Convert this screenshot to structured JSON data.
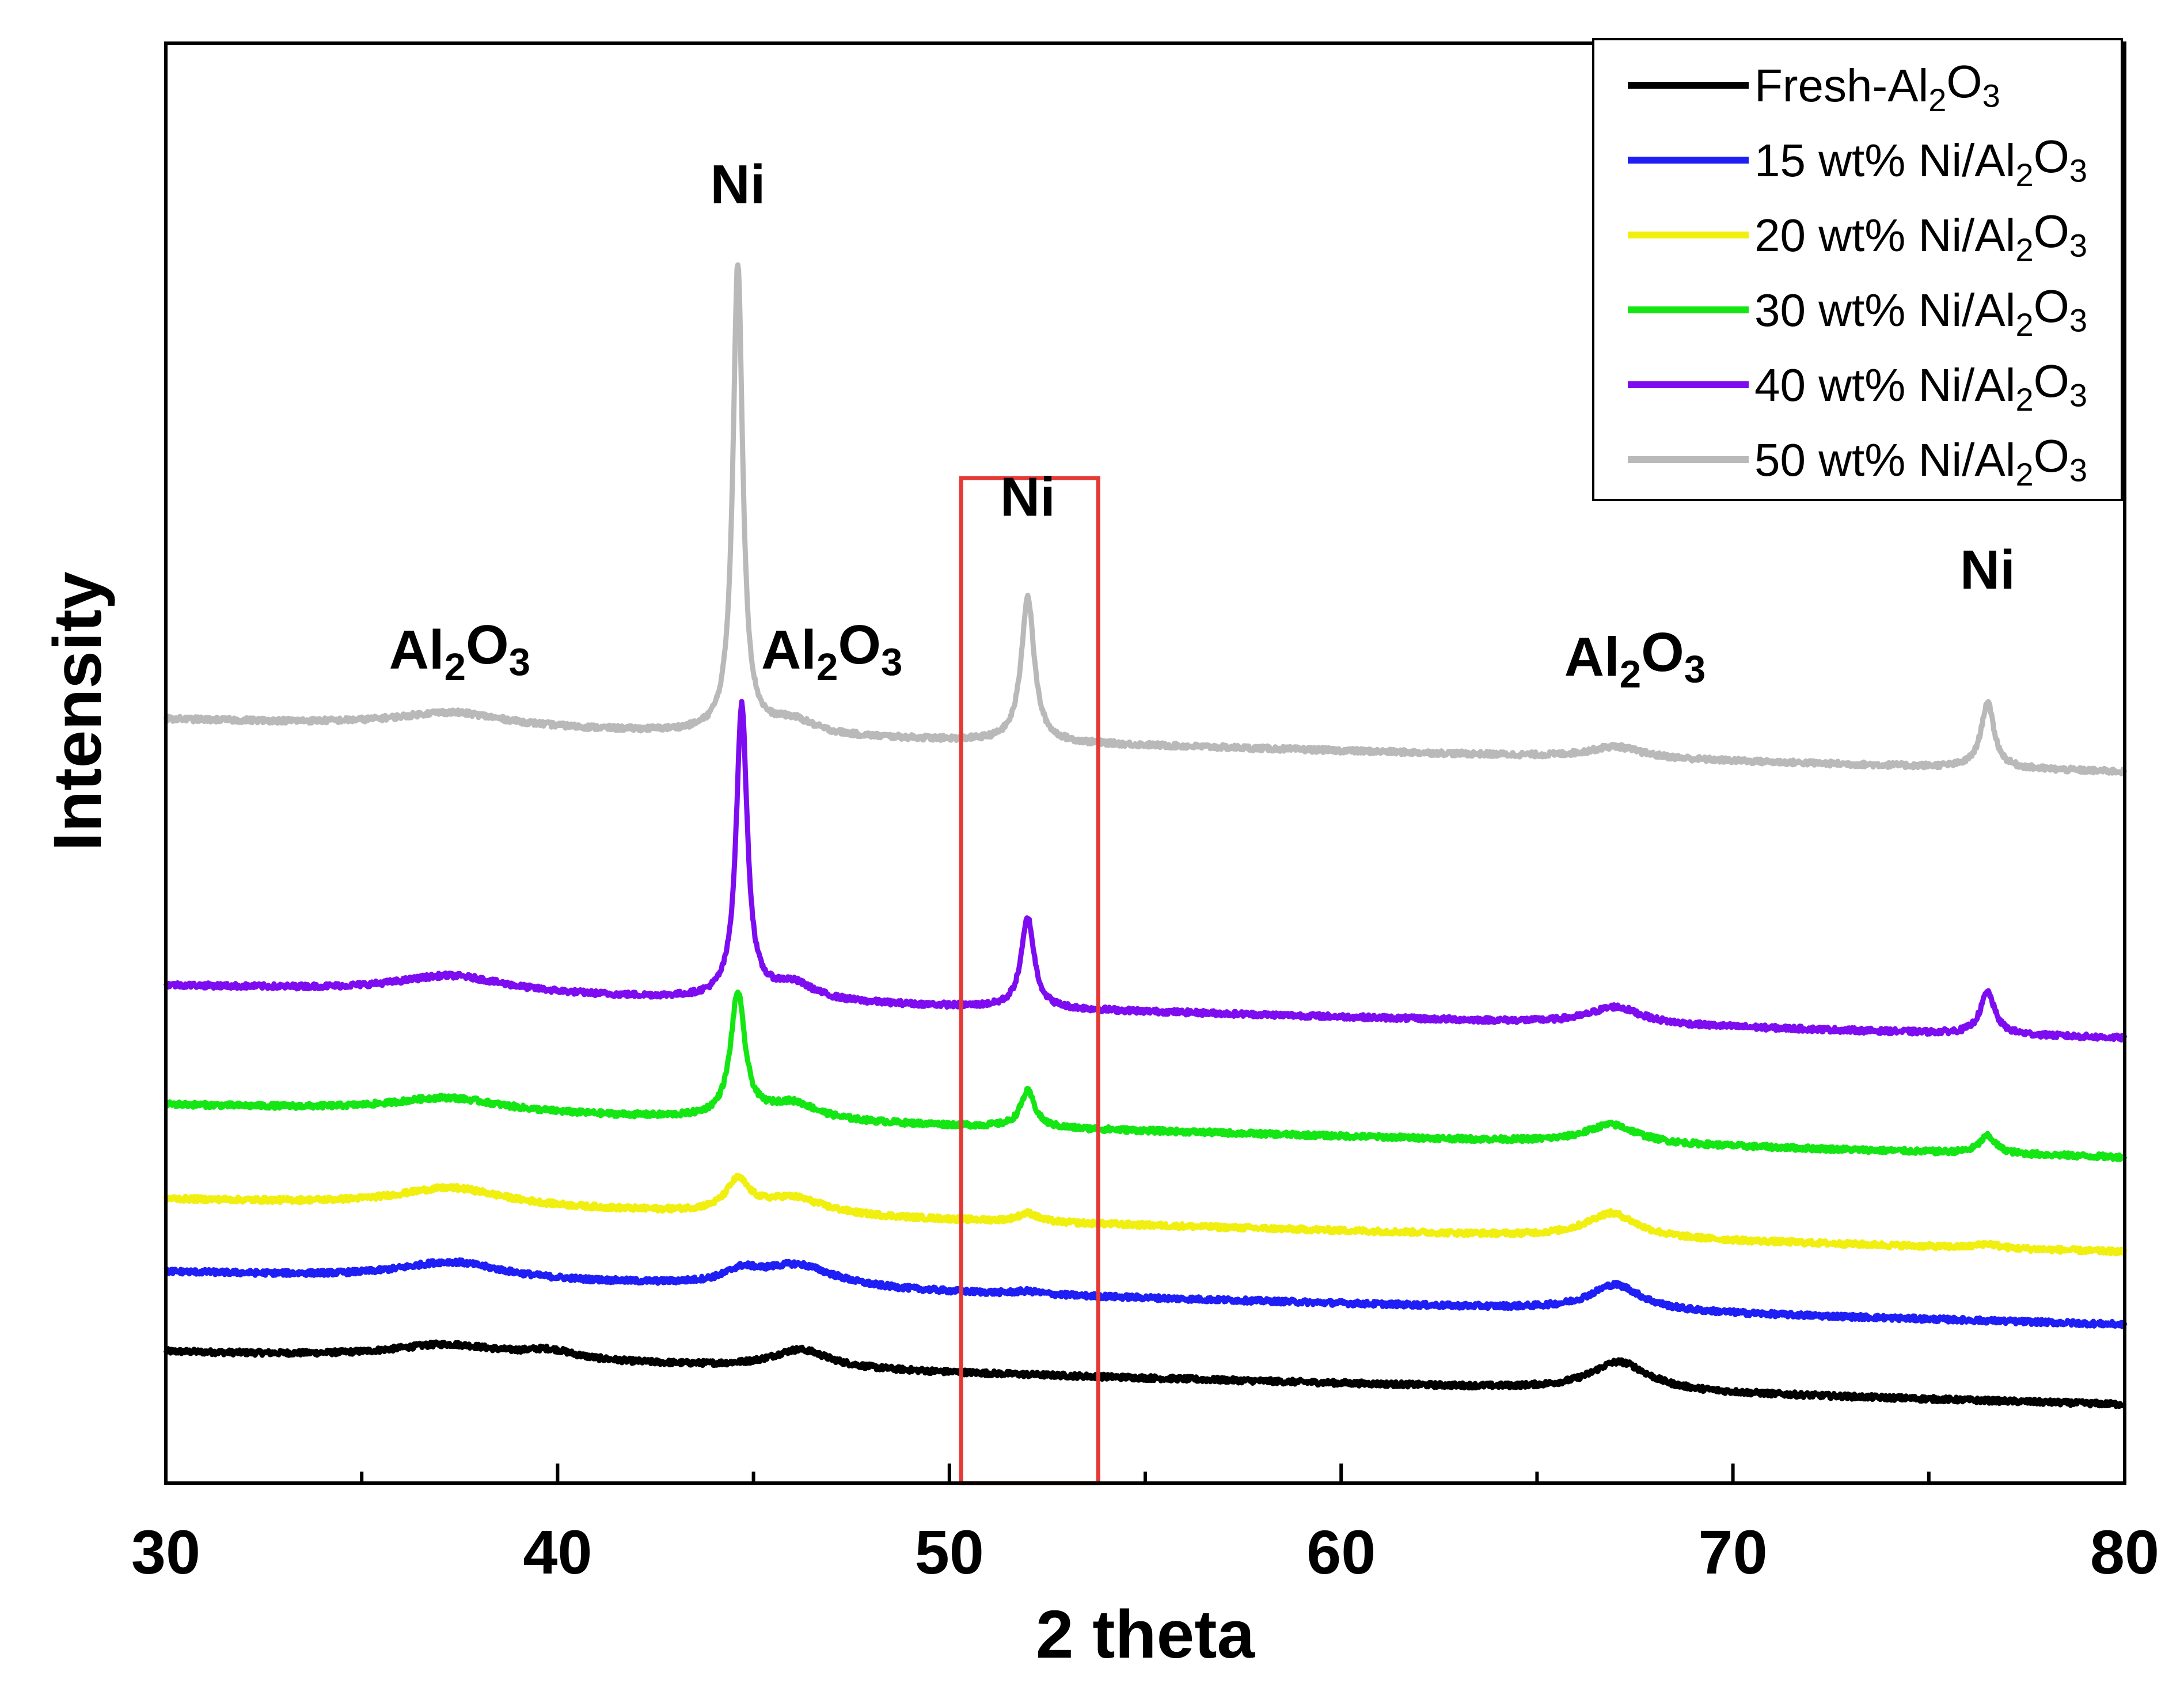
{
  "chart_data": {
    "type": "line",
    "title": "",
    "xlabel": "2 theta",
    "ylabel": "Intensity",
    "xlim": [
      30,
      80
    ],
    "xticks": [
      30,
      40,
      50,
      60,
      70,
      80
    ],
    "xtick_labels": [
      "30",
      "40",
      "50",
      "60",
      "70",
      "80"
    ],
    "yticks_visible": false,
    "grid": false,
    "legend_position": "top-right",
    "highlight_box": {
      "x_range": [
        50.3,
        53.8
      ],
      "color": "#e53935"
    },
    "peaks_description": "Ni peaks near 44.5, 52.0, 76.5; broad Al2O3 humps near 37.3, 46, 67",
    "series": [
      {
        "name": "Fresh-Al2O3",
        "legend": {
          "pre": "Fresh-Al",
          "s1": "2",
          "mid": "O",
          "s2": "3"
        },
        "color": "#000000",
        "baseline": 0.0,
        "peaks": [
          [
            37.2,
            0.1,
            1.8
          ],
          [
            39.8,
            0.06,
            0.8
          ],
          [
            46.2,
            0.13,
            0.9
          ],
          [
            67.1,
            0.2,
            0.9
          ]
        ]
      },
      {
        "name": "15 wt% Ni/Al2O3",
        "legend": {
          "pre": "15 wt% Ni/Al",
          "s1": "2",
          "mid": "O",
          "s2": "3"
        },
        "color": "#1e1ef5",
        "baseline": 0.55,
        "peaks": [
          [
            37.3,
            0.12,
            1.6
          ],
          [
            44.7,
            0.08,
            0.5
          ],
          [
            46.1,
            0.16,
            1.2
          ],
          [
            52.0,
            0.02,
            0.4
          ],
          [
            67.0,
            0.18,
            0.8
          ]
        ]
      },
      {
        "name": "20 wt% Ni/Al2O3",
        "legend": {
          "pre": "20 wt% Ni/Al",
          "s1": "2",
          "mid": "O",
          "s2": "3"
        },
        "color": "#f0ef10",
        "baseline": 1.05,
        "peaks": [
          [
            37.3,
            0.13,
            1.7
          ],
          [
            44.6,
            0.21,
            0.35
          ],
          [
            46.0,
            0.12,
            1.0
          ],
          [
            52.0,
            0.06,
            0.3
          ],
          [
            66.9,
            0.17,
            0.8
          ],
          [
            76.5,
            0.03,
            0.3
          ]
        ]
      },
      {
        "name": "30 wt% Ni/Al2O3",
        "legend": {
          "pre": "30 wt% Ni/Al",
          "s1": "2",
          "mid": "O",
          "s2": "3"
        },
        "color": "#14e614",
        "baseline": 1.7,
        "peaks": [
          [
            37.2,
            0.1,
            1.7
          ],
          [
            44.6,
            0.85,
            0.22
          ],
          [
            46.0,
            0.12,
            0.8
          ],
          [
            52.0,
            0.25,
            0.22
          ],
          [
            66.9,
            0.13,
            0.8
          ],
          [
            76.5,
            0.12,
            0.25
          ]
        ]
      },
      {
        "name": "40 wt% Ni/Al2O3",
        "legend": {
          "pre": "40 wt% Ni/Al",
          "s1": "2",
          "mid": "O",
          "s2": "3"
        },
        "color": "#7e0cf0",
        "baseline": 2.52,
        "peaks": [
          [
            37.3,
            0.12,
            1.7
          ],
          [
            44.7,
            2.01,
            0.17
          ],
          [
            46.0,
            0.12,
            0.7
          ],
          [
            52.0,
            0.62,
            0.2
          ],
          [
            67.0,
            0.12,
            0.8
          ],
          [
            76.5,
            0.29,
            0.22
          ]
        ]
      },
      {
        "name": "50 wt% Ni/Al2O3",
        "legend": {
          "pre": "50 wt% Ni/Al",
          "s1": "2",
          "mid": "O",
          "s2": "3"
        },
        "color": "#b9b9b9",
        "baseline": 4.35,
        "peaks": [
          [
            37.3,
            0.1,
            1.7
          ],
          [
            44.6,
            3.22,
            0.15
          ],
          [
            46.0,
            0.1,
            0.7
          ],
          [
            52.0,
            1.0,
            0.2
          ],
          [
            67.0,
            0.08,
            0.8
          ],
          [
            76.5,
            0.45,
            0.2
          ]
        ]
      }
    ],
    "annotations": [
      {
        "pre": "Ni",
        "s1": "",
        "mid": "",
        "s2": "",
        "x": 44.6,
        "y": 7.9
      },
      {
        "pre": "Ni",
        "s1": "",
        "mid": "",
        "s2": "",
        "x": 52.0,
        "y": 5.75
      },
      {
        "pre": "Ni",
        "s1": "",
        "mid": "",
        "s2": "",
        "x": 76.5,
        "y": 5.25
      },
      {
        "pre": "Al",
        "s1": "2",
        "mid": "O",
        "s2": "3",
        "x": 37.5,
        "y": 4.7
      },
      {
        "pre": "Al",
        "s1": "2",
        "mid": "O",
        "s2": "3",
        "x": 47.0,
        "y": 4.7
      },
      {
        "pre": "Al",
        "s1": "2",
        "mid": "O",
        "s2": "3",
        "x": 67.5,
        "y": 4.65
      }
    ],
    "ylim": [
      -0.9,
      9.0
    ]
  }
}
